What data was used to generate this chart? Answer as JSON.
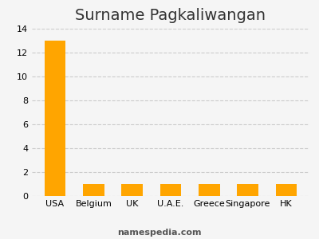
{
  "title": "Surname Pagkaliwangan",
  "categories": [
    "USA",
    "Belgium",
    "UK",
    "U.A.E.",
    "Greece",
    "Singapore",
    "HK"
  ],
  "values": [
    13,
    1,
    1,
    1,
    1,
    1,
    1
  ],
  "bar_color": "#FFA500",
  "background_color": "#f5f5f5",
  "ylim": [
    0,
    14
  ],
  "yticks": [
    0,
    2,
    4,
    6,
    8,
    10,
    12,
    14
  ],
  "grid_color": "#cccccc",
  "title_fontsize": 14,
  "tick_fontsize": 8,
  "footer_text": "namespedia.com",
  "footer_fontsize": 8,
  "bar_width": 0.55
}
